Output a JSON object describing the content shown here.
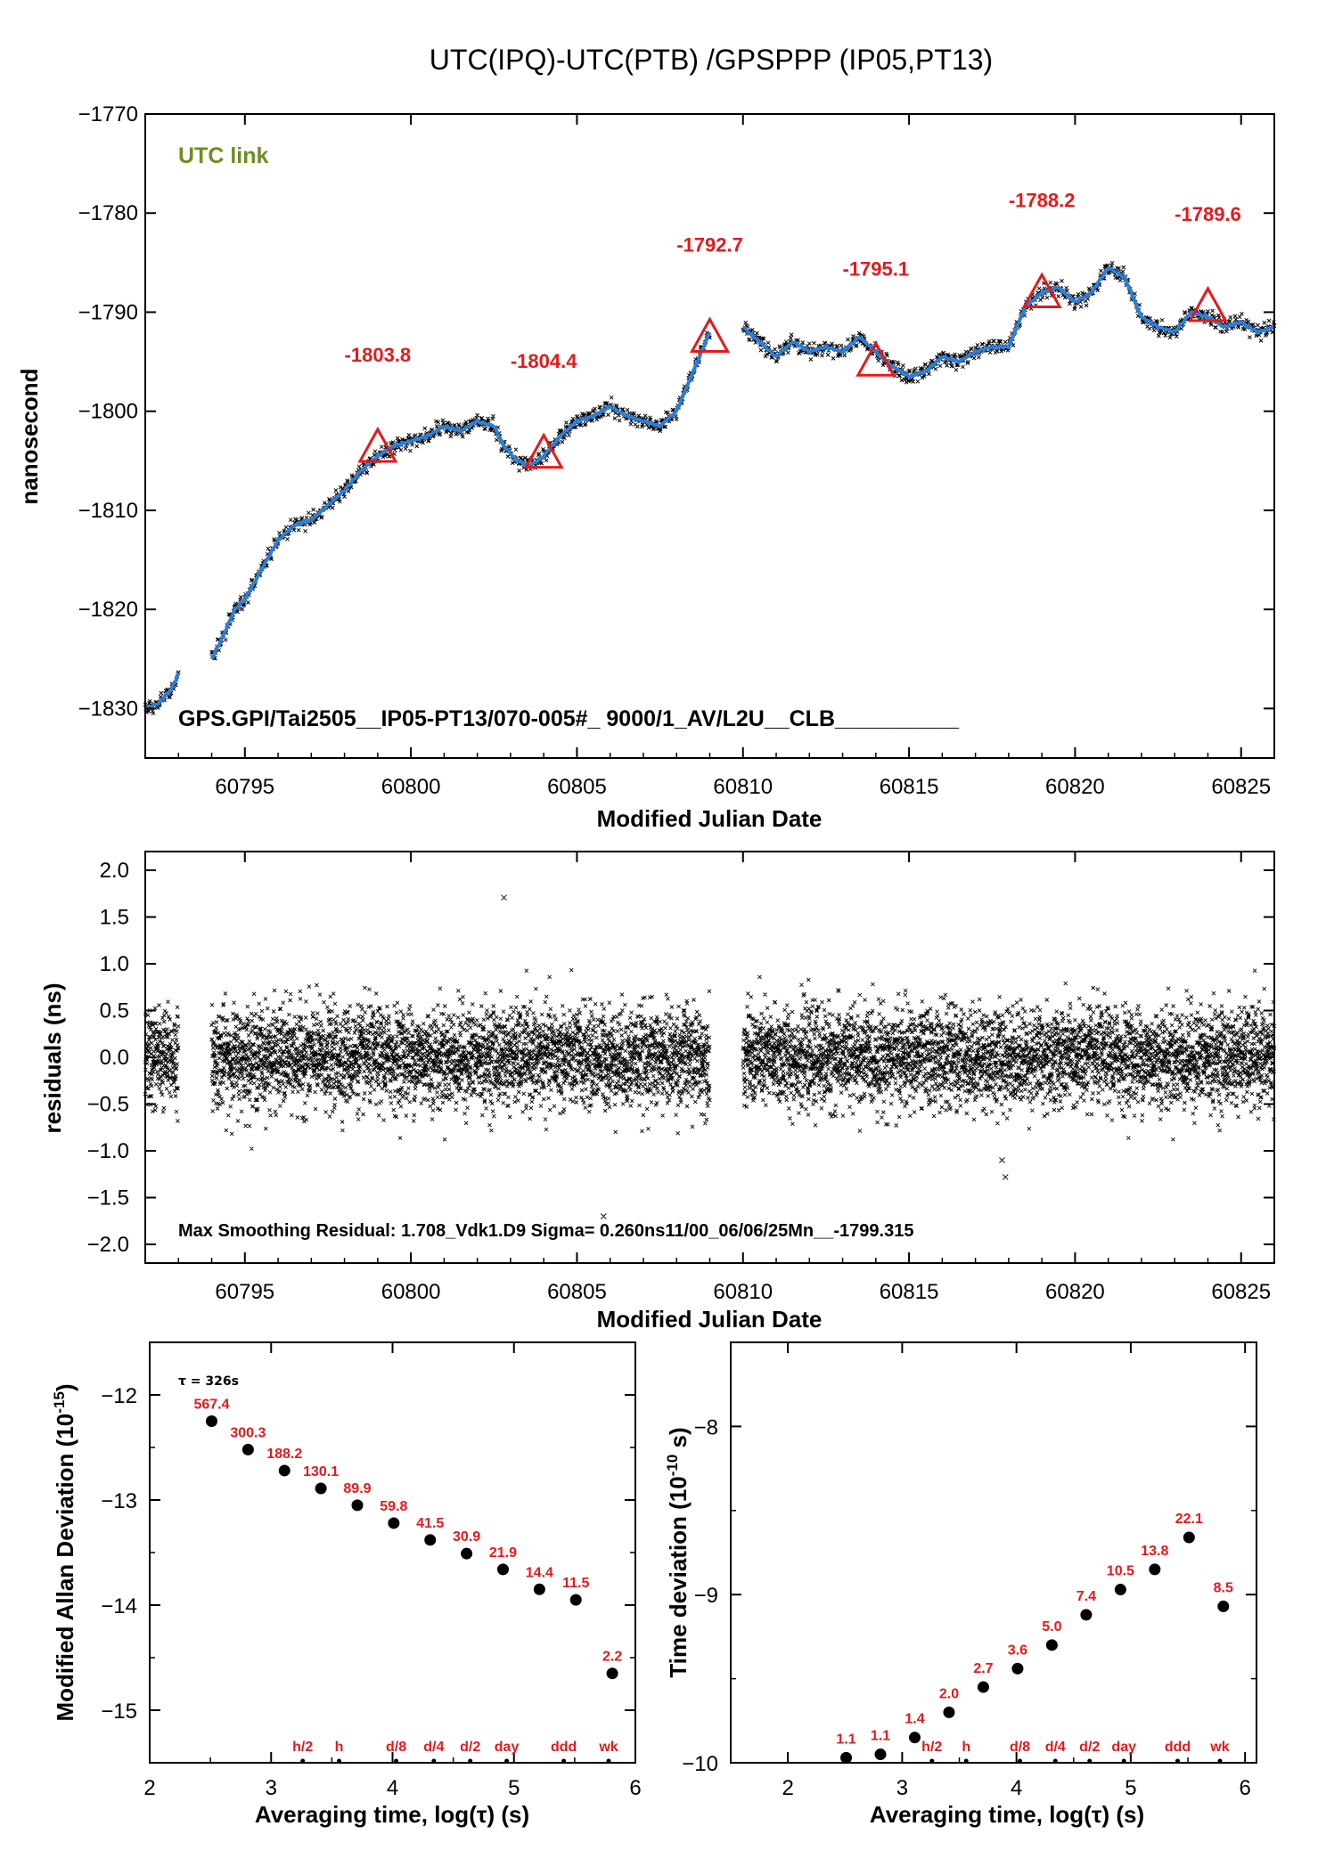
{
  "figure": {
    "title": "UTC(IPQ)-UTC(PTB)  /GPSPPP  (IP05,PT13)"
  },
  "chart_data": [
    {
      "id": "time-series",
      "type": "line",
      "xlabel": "Modified Julian Date",
      "ylabel": "nanosecond",
      "xlim": [
        60792,
        60826
      ],
      "ylim": [
        -1835,
        -1770
      ],
      "xticks": [
        60795,
        60800,
        60805,
        60810,
        60815,
        60820,
        60825
      ],
      "yticks": [
        -1830,
        -1820,
        -1810,
        -1800,
        -1790,
        -1780,
        -1770
      ],
      "legend_text": "UTC link",
      "info_text": "GPS.GPI/Tai2505__IP05-PT13/070-005#_  9000/1_AV/L2U__CLB__________",
      "colors": {
        "smoothed": "#2c7fd6",
        "raw": "#000000",
        "marker": "#e31a1c",
        "legend": "#6b8e23"
      },
      "series": [
        {
          "name": "",
          "x": [
            60792.0,
            60792.4,
            60792.8,
            60793.0,
            60794.0,
            60794.3,
            60794.7,
            60795.0,
            60795.5,
            60796.0,
            60796.5,
            60797.0,
            60797.5,
            60798.0,
            60798.5,
            60799.0,
            60799.5,
            60800.0,
            60800.5,
            60801.0,
            60801.5,
            60802.0,
            60802.5,
            60802.8,
            60803.2,
            60803.6,
            60804.0,
            60804.5,
            60805.0,
            60805.5,
            60806.0,
            60806.5,
            60807.0,
            60807.5,
            60808.0,
            60808.5,
            60809.0,
            60810.0,
            60810.5,
            60811.0,
            60811.5,
            60812.0,
            60812.5,
            60813.0,
            60813.5,
            60814.0,
            60814.5,
            60815.0,
            60815.5,
            60816.0,
            60816.5,
            60817.0,
            60817.5,
            60818.0,
            60818.5,
            60819.0,
            60819.5,
            60820.0,
            60820.5,
            60821.0,
            60821.5,
            60822.0,
            60822.5,
            60823.0,
            60823.5,
            60824.0,
            60824.5,
            60825.0,
            60825.5,
            60826.0
          ],
          "y": [
            -1830.0,
            -1829.5,
            -1828.0,
            -1826.5,
            -1825.0,
            -1823.0,
            -1820.0,
            -1819.0,
            -1816.0,
            -1813.0,
            -1811.5,
            -1811.0,
            -1809.5,
            -1808.0,
            -1806.0,
            -1804.5,
            -1803.5,
            -1803.0,
            -1802.5,
            -1801.5,
            -1802.0,
            -1801.0,
            -1801.5,
            -1803.5,
            -1805.0,
            -1805.5,
            -1804.5,
            -1802.5,
            -1801.0,
            -1800.5,
            -1799.5,
            -1800.5,
            -1801.0,
            -1801.5,
            -1800.0,
            -1796.0,
            -1792.0,
            -1791.5,
            -1793.0,
            -1794.5,
            -1793.0,
            -1794.0,
            -1793.5,
            -1794.0,
            -1792.5,
            -1794.0,
            -1795.5,
            -1796.5,
            -1796.0,
            -1794.5,
            -1795.0,
            -1794.0,
            -1793.5,
            -1793.5,
            -1789.5,
            -1788.0,
            -1787.5,
            -1789.0,
            -1788.0,
            -1785.5,
            -1786.5,
            -1790.5,
            -1791.5,
            -1792.0,
            -1790.0,
            -1790.5,
            -1791.5,
            -1791.0,
            -1792.0,
            -1791.5
          ]
        }
      ],
      "markers": [
        {
          "x": 60799.0,
          "y": -1803.8,
          "label": "-1803.8"
        },
        {
          "x": 60804.0,
          "y": -1804.4,
          "label": "-1804.4"
        },
        {
          "x": 60809.0,
          "y": -1792.7,
          "label": "-1792.7"
        },
        {
          "x": 60814.0,
          "y": -1795.1,
          "label": "-1795.1"
        },
        {
          "x": 60819.0,
          "y": -1788.2,
          "label": "-1788.2"
        },
        {
          "x": 60824.0,
          "y": -1789.6,
          "label": "-1789.6"
        }
      ]
    },
    {
      "id": "residuals",
      "type": "scatter",
      "xlabel": "Modified Julian Date",
      "ylabel": "residuals (ns)",
      "xlim": [
        60792,
        60826
      ],
      "ylim": [
        -2.2,
        2.2
      ],
      "xticks": [
        60795,
        60800,
        60805,
        60810,
        60815,
        60820,
        60825
      ],
      "yticks": [
        -2.0,
        -1.5,
        -1.0,
        -0.5,
        0.0,
        0.5,
        1.0,
        1.5,
        2.0
      ],
      "ytick_labels": [
        "−2.0",
        "−1.5",
        "−1.0",
        "−0.5",
        "0.0",
        "0.5",
        "1.0",
        "1.5",
        "2.0"
      ],
      "data_ranges_mjd": [
        [
          60792.0,
          60793.0
        ],
        [
          60794.0,
          60809.0
        ],
        [
          60810.0,
          60826.0
        ]
      ],
      "sigma_ns": 0.26,
      "outliers": [
        {
          "x": 60802.8,
          "y": 1.708
        },
        {
          "x": 60805.8,
          "y": -1.7
        },
        {
          "x": 60817.9,
          "y": -1.28
        },
        {
          "x": 60817.8,
          "y": -1.1
        }
      ],
      "info_text": "Max Smoothing Residual: 1.708_Vdk1.D9  Sigma= 0.260ns11/00_06/06/25Mn__-1799.315"
    },
    {
      "id": "mod-allan-deviation",
      "type": "scatter",
      "xlabel": "Averaging time, log(τ) (s)",
      "ylabel_text": "Modified Allan Deviation (10",
      "ylabel_exp": "-15",
      "ylabel_close": ")",
      "xlim": [
        2,
        6
      ],
      "ylim": [
        -15.5,
        -11.5
      ],
      "xticks": [
        2,
        3,
        4,
        5,
        6
      ],
      "yticks": [
        -15,
        -14,
        -13,
        -12
      ],
      "ytick_labels": [
        "−15",
        "−14",
        "−13",
        "−12"
      ],
      "tau_note": "τ = 326s",
      "x": [
        2.51,
        2.81,
        3.11,
        3.41,
        3.71,
        4.01,
        4.31,
        4.61,
        4.91,
        5.21,
        5.51,
        5.81
      ],
      "y": [
        -12.25,
        -12.52,
        -12.72,
        -12.89,
        -13.05,
        -13.22,
        -13.38,
        -13.51,
        -13.66,
        -13.85,
        -13.95,
        -14.65
      ],
      "point_labels": [
        "567.4",
        "300.3",
        "188.2",
        "130.1",
        "89.9",
        "59.8",
        "41.5",
        "30.9",
        "21.9",
        "14.4",
        "11.5",
        "2.2"
      ],
      "time_marks": [
        {
          "label": "h/2",
          "x": 3.26
        },
        {
          "label": "h",
          "x": 3.56
        },
        {
          "label": "d/8",
          "x": 4.03
        },
        {
          "label": "d/4",
          "x": 4.34
        },
        {
          "label": "d/2",
          "x": 4.64
        },
        {
          "label": "day",
          "x": 4.94
        },
        {
          "label": "ddd",
          "x": 5.41
        },
        {
          "label": "wk",
          "x": 5.78
        }
      ]
    },
    {
      "id": "time-deviation",
      "type": "scatter",
      "xlabel": "Averaging time, log(τ) (s)",
      "ylabel_text": "Time deviation (10",
      "ylabel_exp": "-10",
      "ylabel_close": " s)",
      "xlim": [
        1.5,
        6.1
      ],
      "ylim": [
        -10.0,
        -7.5
      ],
      "xticks": [
        2,
        3,
        4,
        5,
        6
      ],
      "yticks": [
        -10,
        -9,
        -8
      ],
      "ytick_labels": [
        "−10",
        "−9",
        "−8"
      ],
      "x": [
        2.51,
        2.81,
        3.11,
        3.41,
        3.71,
        4.01,
        4.31,
        4.61,
        4.91,
        5.21,
        5.51,
        5.81
      ],
      "y": [
        -9.97,
        -9.95,
        -9.85,
        -9.7,
        -9.55,
        -9.44,
        -9.3,
        -9.12,
        -8.97,
        -8.85,
        -8.66,
        -9.07
      ],
      "point_labels": [
        "1.1",
        "1.1",
        "1.4",
        "2.0",
        "2.7",
        "3.6",
        "5.0",
        "7.4",
        "10.5",
        "13.8",
        "22.1",
        "8.5"
      ],
      "time_marks": [
        {
          "label": "h/2",
          "x": 3.26
        },
        {
          "label": "h",
          "x": 3.56
        },
        {
          "label": "d/8",
          "x": 4.03
        },
        {
          "label": "d/4",
          "x": 4.34
        },
        {
          "label": "d/2",
          "x": 4.64
        },
        {
          "label": "day",
          "x": 4.94
        },
        {
          "label": "ddd",
          "x": 5.41
        },
        {
          "label": "wk",
          "x": 5.78
        }
      ]
    }
  ]
}
